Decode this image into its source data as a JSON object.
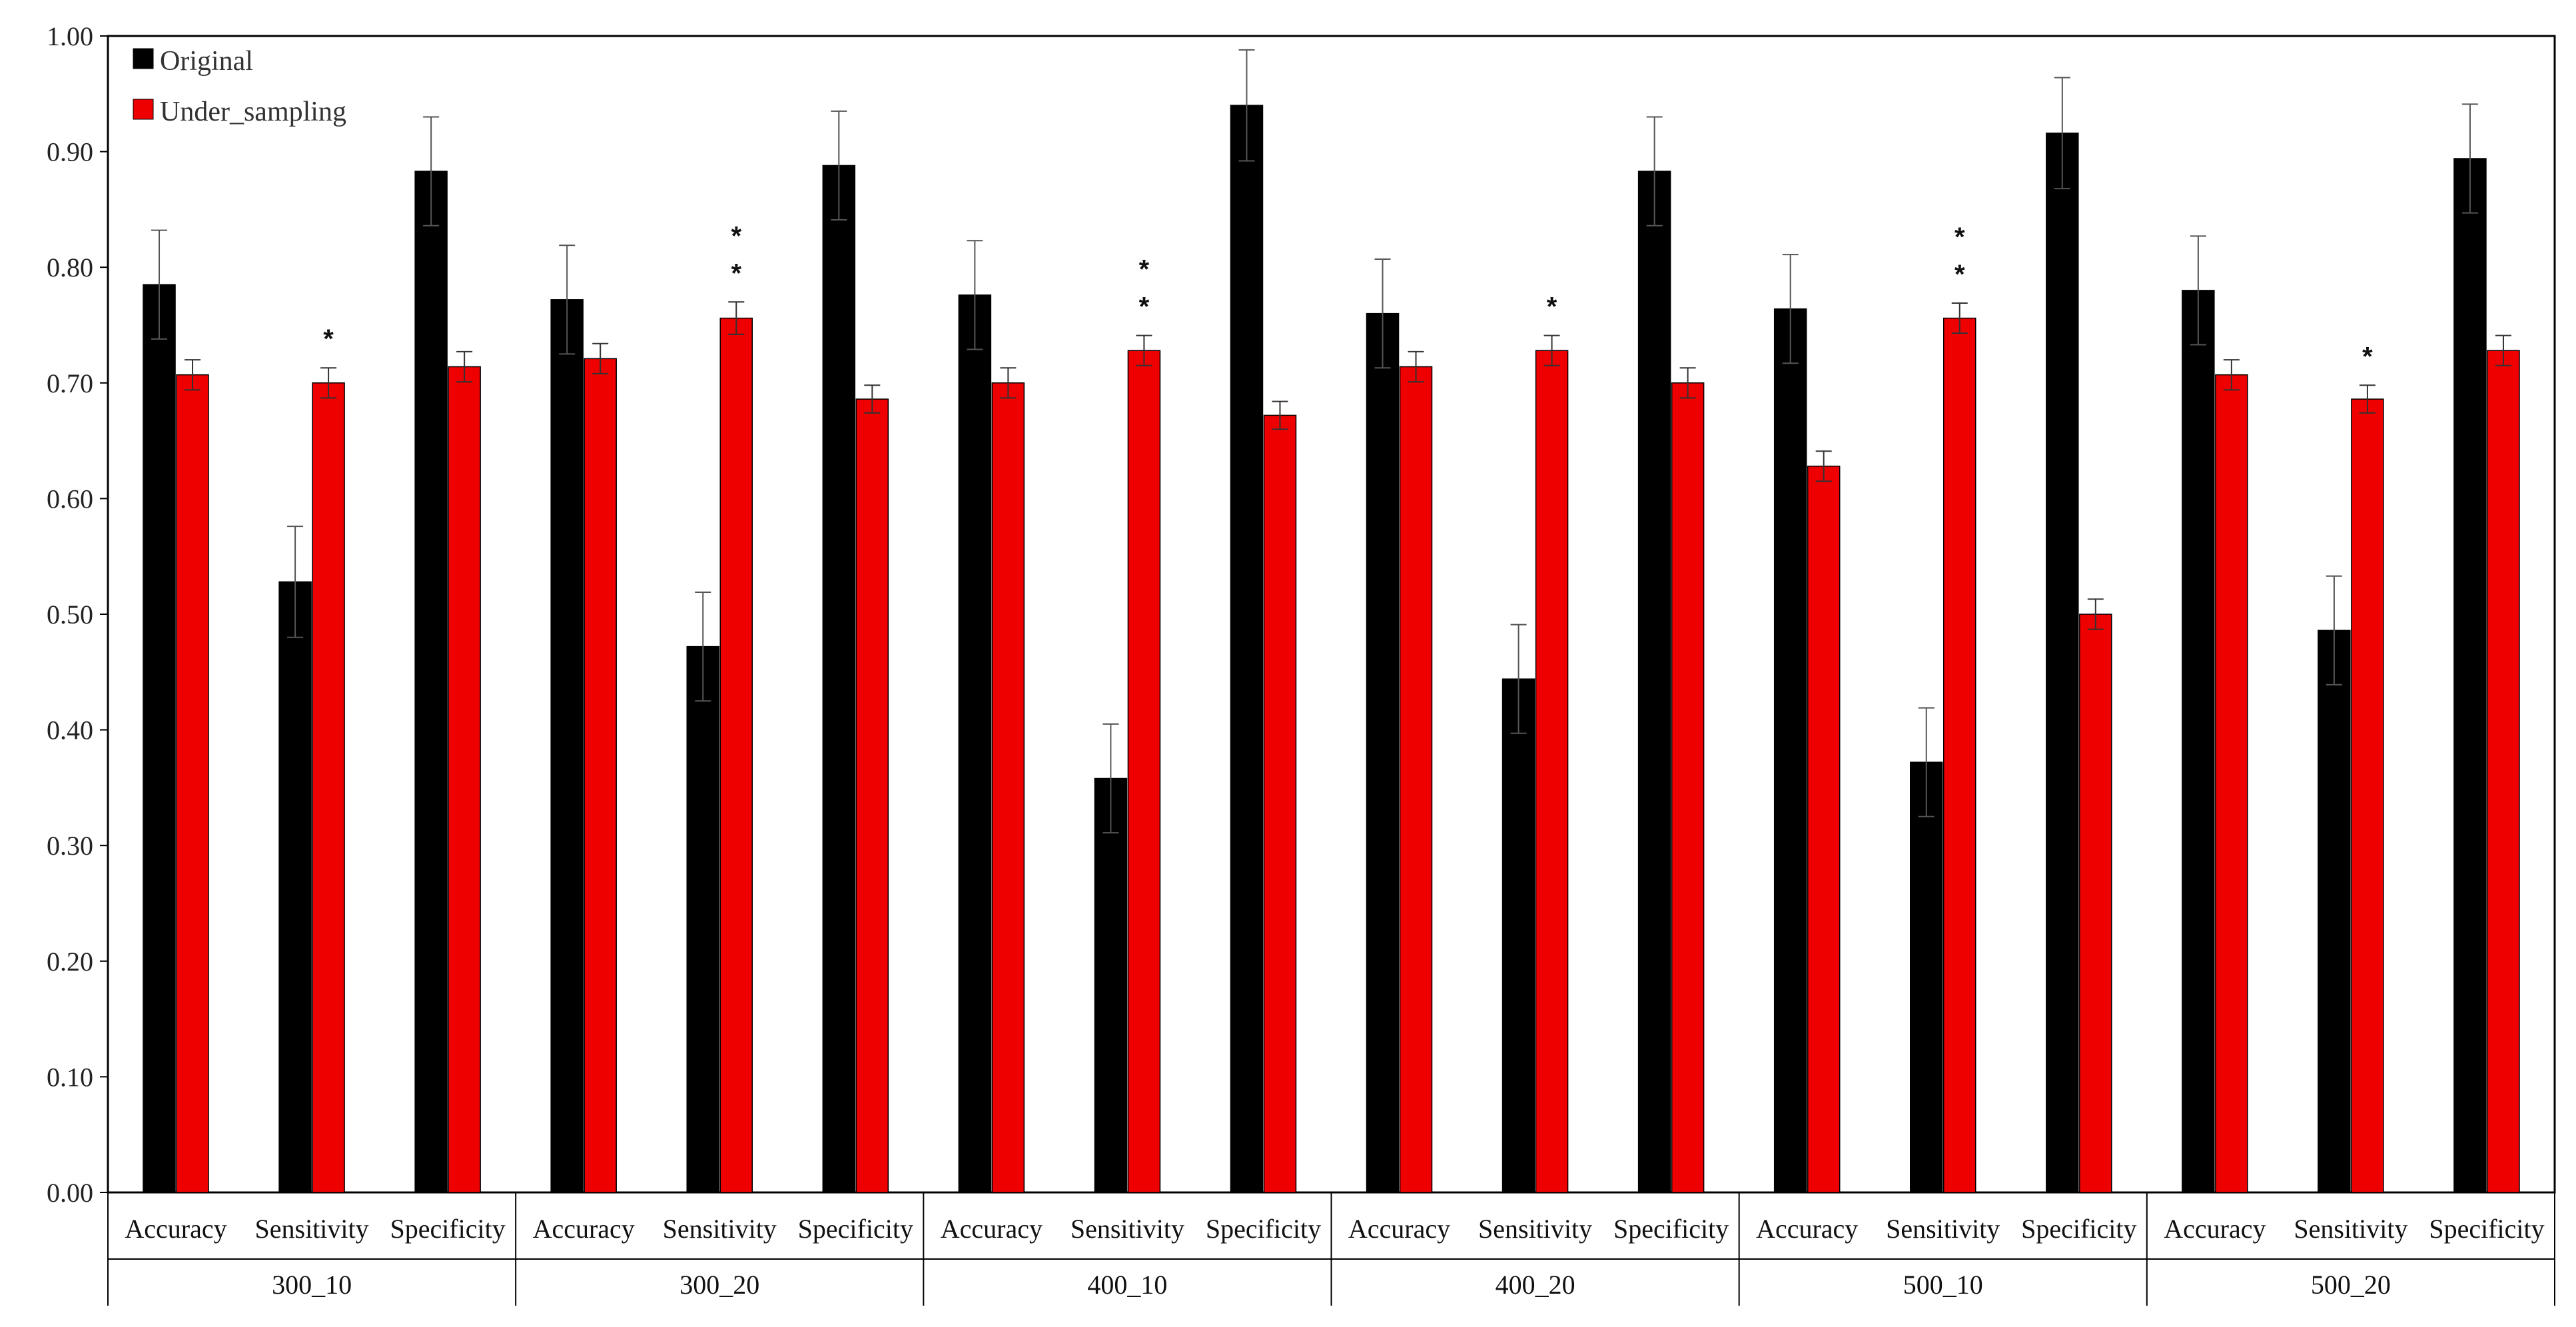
{
  "chart_data": {
    "type": "bar",
    "ylim": [
      0,
      1.0
    ],
    "yticks": [
      "0.00",
      "0.10",
      "0.20",
      "0.30",
      "0.40",
      "0.50",
      "0.60",
      "0.70",
      "0.80",
      "0.90",
      "1.00"
    ],
    "groups": [
      "300_10",
      "300_20",
      "400_10",
      "400_20",
      "500_10",
      "500_20"
    ],
    "metrics": [
      "Accuracy",
      "Sensitivity",
      "Specificity"
    ],
    "legend_position": "top-left",
    "grid": false,
    "series": [
      {
        "name": "Original",
        "color": "#000000",
        "values": [
          0.785,
          0.528,
          0.883,
          0.772,
          0.472,
          0.888,
          0.776,
          0.358,
          0.94,
          0.76,
          0.444,
          0.883,
          0.764,
          0.372,
          0.916,
          0.78,
          0.486,
          0.894
        ],
        "errors": [
          0.047,
          0.048,
          0.047,
          0.047,
          0.047,
          0.047,
          0.047,
          0.047,
          0.048,
          0.047,
          0.047,
          0.047,
          0.047,
          0.047,
          0.048,
          0.047,
          0.047,
          0.047
        ]
      },
      {
        "name": "Under_sampling",
        "color": "#ee0000",
        "values": [
          0.707,
          0.7,
          0.714,
          0.721,
          0.756,
          0.686,
          0.7,
          0.728,
          0.672,
          0.714,
          0.728,
          0.7,
          0.628,
          0.756,
          0.5,
          0.707,
          0.686,
          0.728
        ],
        "errors": [
          0.013,
          0.013,
          0.013,
          0.013,
          0.014,
          0.012,
          0.013,
          0.013,
          0.012,
          0.013,
          0.013,
          0.013,
          0.013,
          0.013,
          0.013,
          0.013,
          0.012,
          0.013
        ]
      }
    ],
    "annotations": [
      "",
      "*",
      "",
      "",
      "* *",
      "",
      "",
      "* *",
      "",
      "",
      "*",
      "",
      "",
      "* *",
      "",
      "",
      "*",
      ""
    ]
  }
}
